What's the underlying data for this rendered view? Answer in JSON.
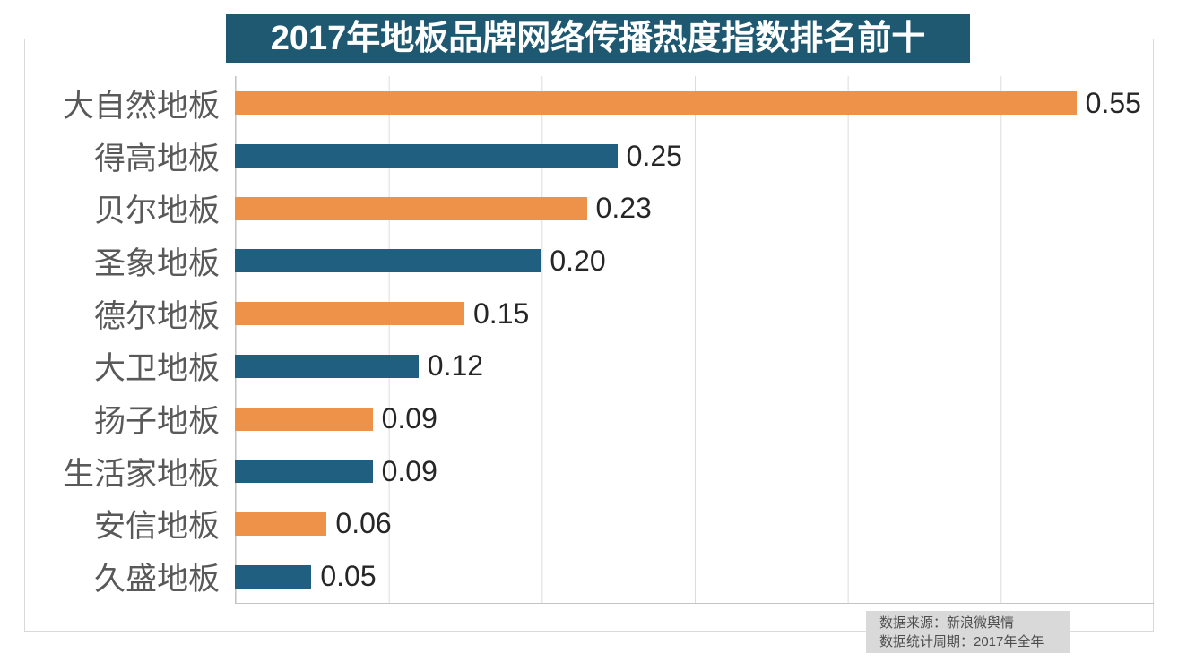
{
  "header": {
    "title": "2017年地板品牌网络传播热度指数排名前十"
  },
  "chart_data": {
    "type": "bar",
    "orientation": "horizontal",
    "title": "2017年地板品牌网络传播热度指数排名前十",
    "categories": [
      "大自然地板",
      "得高地板",
      "贝尔地板",
      "圣象地板",
      "德尔地板",
      "大卫地板",
      "扬子地板",
      "生活家地板",
      "安信地板",
      "久盛地板"
    ],
    "values": [
      0.55,
      0.25,
      0.23,
      0.2,
      0.15,
      0.12,
      0.09,
      0.09,
      0.06,
      0.05
    ],
    "value_labels": [
      "0.55",
      "0.25",
      "0.23",
      "0.20",
      "0.15",
      "0.12",
      "0.09",
      "0.09",
      "0.06",
      "0.05"
    ],
    "xlabel": "",
    "ylabel": "",
    "xlim": [
      0,
      0.6
    ],
    "gridline_interval": 0.1,
    "grid": true,
    "legend": false,
    "bar_color_odd_rows": "#ef9249",
    "bar_color_even_rows": "#215f80"
  },
  "source_note": {
    "line1": "数据来源：新浪微舆情",
    "line2": "数据统计周期：2017年全年"
  },
  "colors": {
    "banner_bg": "#1e5971",
    "banner_text": "#ffffff",
    "bar_orange": "#ef9249",
    "bar_blue": "#215f80",
    "gridline": "#dcdcdc",
    "axis_line": "#c4c4c4",
    "frame_border": "#d9d9d9",
    "category_text": "#595959",
    "value_text": "#262626",
    "source_bg": "#d9d9d9",
    "source_text": "#4d4d4d"
  }
}
